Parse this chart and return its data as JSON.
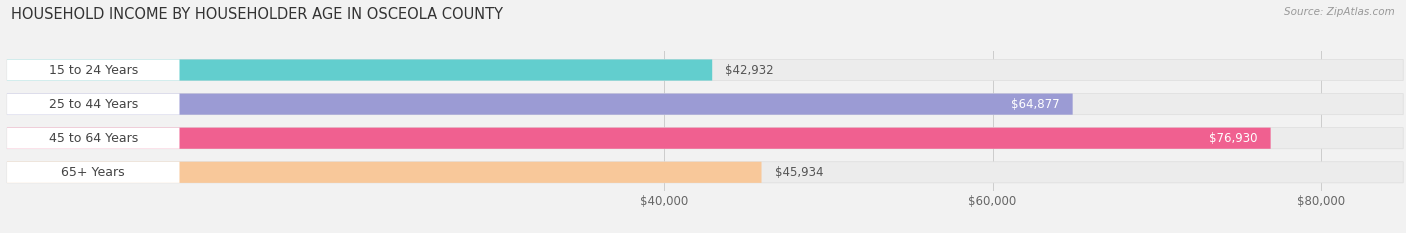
{
  "title": "HOUSEHOLD INCOME BY HOUSEHOLDER AGE IN OSCEOLA COUNTY",
  "source": "Source: ZipAtlas.com",
  "categories": [
    "15 to 24 Years",
    "25 to 44 Years",
    "45 to 64 Years",
    "65+ Years"
  ],
  "values": [
    42932,
    64877,
    76930,
    45934
  ],
  "bar_colors": [
    "#62cece",
    "#9b9bd4",
    "#f06090",
    "#f8c89a"
  ],
  "value_label_colors": [
    "#555555",
    "#ffffff",
    "#ffffff",
    "#555555"
  ],
  "xmin": 0,
  "xmax": 85000,
  "xticks": [
    40000,
    60000,
    80000
  ],
  "xtick_labels": [
    "$40,000",
    "$60,000",
    "$80,000"
  ],
  "background_color": "#f2f2f2",
  "bar_bg_color": "#e8e8e8",
  "title_fontsize": 10.5,
  "tick_fontsize": 8.5,
  "cat_fontsize": 9,
  "val_fontsize": 8.5,
  "source_fontsize": 7.5
}
